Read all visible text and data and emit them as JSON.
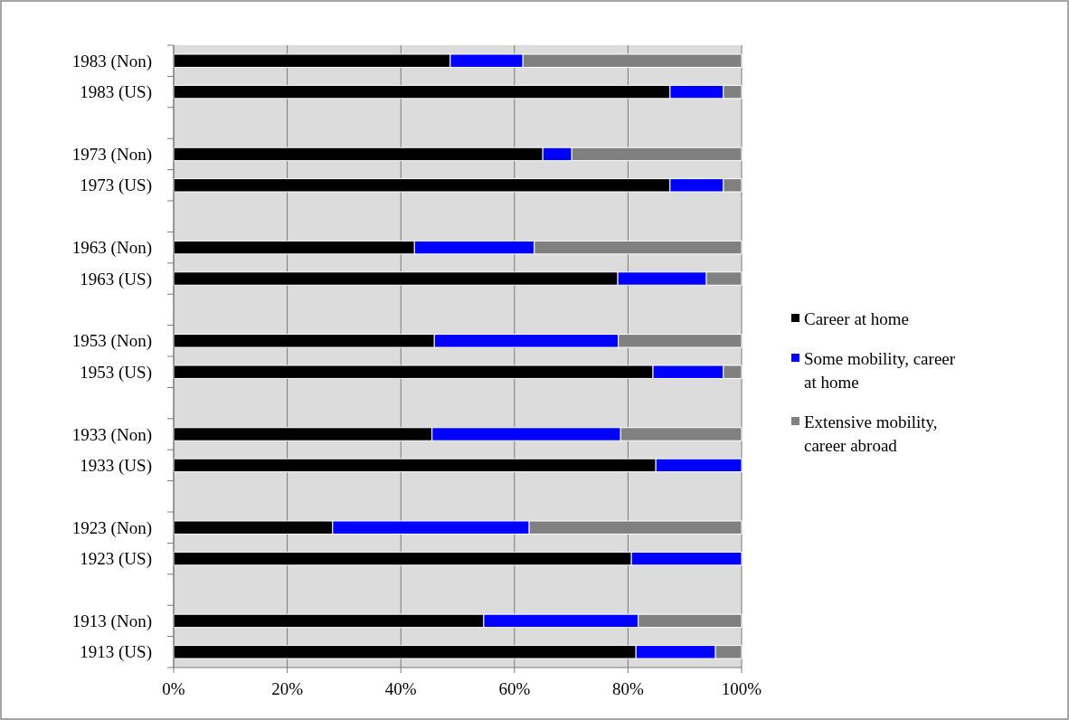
{
  "chart_data": {
    "type": "bar",
    "orientation": "horizontal",
    "stacked": true,
    "categories": [
      "1983 (Non)",
      "1983 (US)",
      null,
      "1973 (Non)",
      "1973 (US)",
      null,
      "1963 (Non)",
      "1963 (US)",
      null,
      "1953 (Non)",
      "1953 (US)",
      null,
      "1933 (Non)",
      "1933 (US)",
      null,
      "1923 (Non)",
      "1923 (US)",
      null,
      "1913 (Non)",
      "1913 (US)"
    ],
    "series": [
      {
        "name": "Career at home",
        "color": "#000000",
        "values": [
          48.7,
          87.4,
          null,
          65.0,
          87.4,
          null,
          42.4,
          78.2,
          null,
          45.9,
          84.4,
          null,
          45.5,
          84.9,
          null,
          28.0,
          80.6,
          null,
          54.6,
          81.4
        ]
      },
      {
        "name": "Some mobility, career at home",
        "color": "#0000ff",
        "values": [
          12.8,
          9.4,
          null,
          5.1,
          9.4,
          null,
          21.1,
          15.6,
          null,
          32.4,
          12.4,
          null,
          33.2,
          15.1,
          null,
          34.6,
          19.4,
          null,
          27.2,
          14.0
        ]
      },
      {
        "name": "Extensive mobility, career abroad",
        "color": "#808080",
        "values": [
          38.5,
          3.2,
          null,
          29.9,
          3.2,
          null,
          36.5,
          6.2,
          null,
          21.7,
          3.2,
          null,
          21.3,
          0,
          null,
          37.4,
          0,
          null,
          18.2,
          4.6
        ]
      }
    ],
    "xlim": [
      0,
      100
    ],
    "xticks": [
      {
        "value": 0,
        "label": "0%"
      },
      {
        "value": 20,
        "label": "20%"
      },
      {
        "value": 40,
        "label": "40%"
      },
      {
        "value": 60,
        "label": "60%"
      },
      {
        "value": 80,
        "label": "80%"
      },
      {
        "value": 100,
        "label": "100%"
      }
    ],
    "grid": "x",
    "legend": "right"
  }
}
